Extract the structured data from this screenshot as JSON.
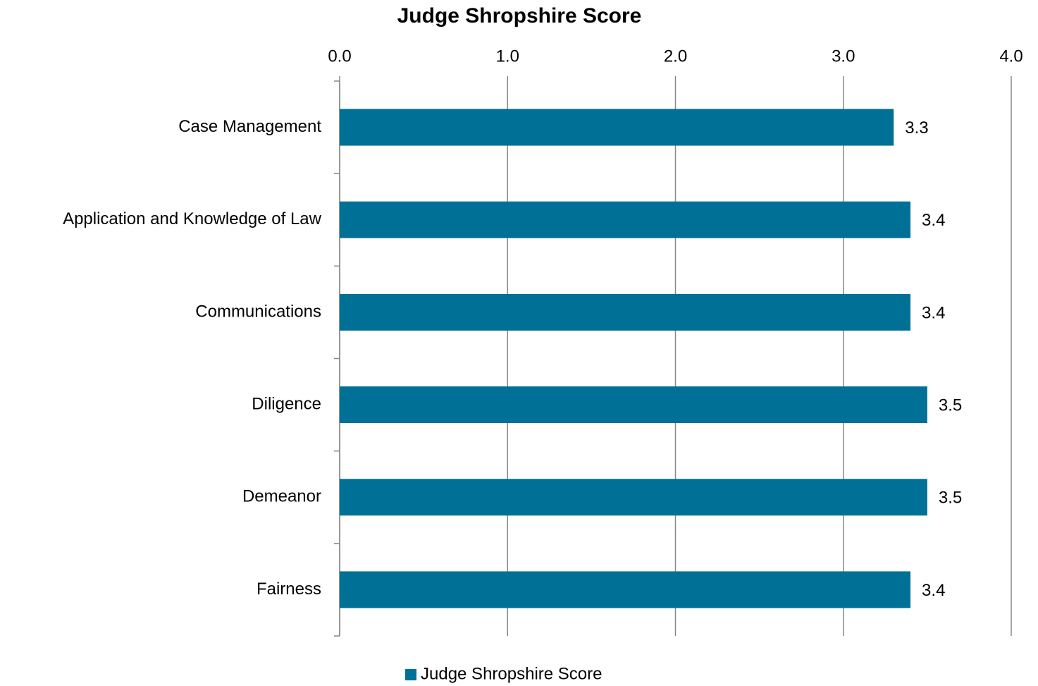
{
  "chart_data": {
    "type": "bar",
    "orientation": "horizontal",
    "title": "Judge Shropshire Score",
    "categories": [
      "Case Management",
      "Application and Knowledge of Law",
      "Communications",
      "Diligence",
      "Demeanor",
      "Fairness"
    ],
    "series": [
      {
        "name": "Judge Shropshire Score",
        "color": "#017096",
        "values": [
          3.3,
          3.4,
          3.4,
          3.5,
          3.5,
          3.4
        ]
      }
    ],
    "xlim": [
      0,
      4
    ],
    "xticks": [
      {
        "value": 0,
        "label": "0.0"
      },
      {
        "value": 1,
        "label": "1.0"
      },
      {
        "value": 2,
        "label": "2.0"
      },
      {
        "value": 3,
        "label": "3.0"
      },
      {
        "value": 4,
        "label": "4.0"
      }
    ],
    "grid": true,
    "legend": "bottom"
  }
}
